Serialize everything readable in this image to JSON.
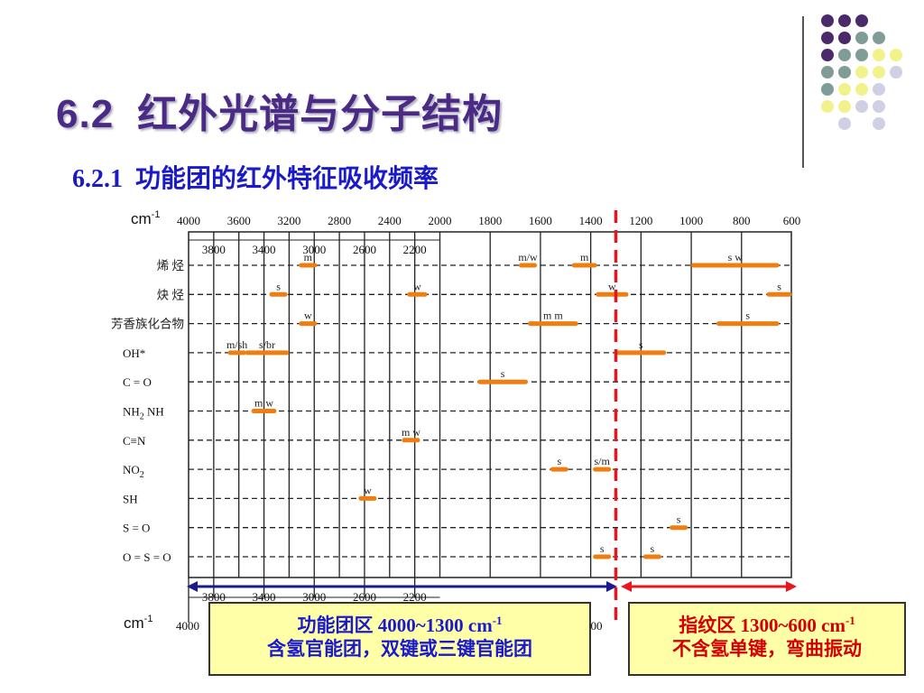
{
  "slide": {
    "title_num": "6.2",
    "title_text": "红外光谱与分子结构",
    "subtitle_num": "6.2.1",
    "subtitle_text": "功能团的红外特征吸收频率"
  },
  "colors": {
    "title": "#4b2a86",
    "subtitle": "#1a1ac8",
    "bar": "#f07d10",
    "divider": "#e8141e",
    "left_arrow": "#1a1a8c",
    "right_arrow": "#e8141e",
    "box_bg": "#ffffa8"
  },
  "dot_colors": {
    "purple": "#4a2a6a",
    "teal": "#7f9c96",
    "yellow": "#f2f28c",
    "lavender": "#d0d0e4"
  },
  "dot_grid": [
    [
      "purple",
      "purple",
      "purple",
      "",
      ""
    ],
    [
      "purple",
      "purple",
      "teal",
      "teal",
      ""
    ],
    [
      "purple",
      "teal",
      "teal",
      "yellow",
      "yellow"
    ],
    [
      "teal",
      "teal",
      "yellow",
      "yellow",
      "lavender"
    ],
    [
      "teal",
      "yellow",
      "yellow",
      "lavender",
      ""
    ],
    [
      "yellow",
      "yellow",
      "lavender",
      "lavender",
      ""
    ],
    [
      "",
      "lavender",
      "",
      "lavender",
      ""
    ]
  ],
  "chart_data": {
    "type": "bar",
    "unit_label": "cm",
    "unit_sup": "-1",
    "top_ticks_major": [
      "4000",
      "3600",
      "3200",
      "2800",
      "2400",
      "2000",
      "1800",
      "1600",
      "1400",
      "1200",
      "1000",
      "800",
      "600"
    ],
    "top_ticks_minor": [
      "3800",
      "3400",
      "3000",
      "2600",
      "2200"
    ],
    "bottom_ticks_minor": [
      "3800",
      "3400",
      "3000",
      "2600",
      "2200"
    ],
    "bottom_ticks_major_visible": [
      "4000",
      "00"
    ],
    "divider_at": 1300,
    "categories": [
      "烯 烃",
      "炔 烃",
      "芳香族化合物",
      "OH*",
      "C = O",
      "NH",
      "C≡N",
      "NO",
      "SH",
      "S = O",
      "O = S = O"
    ],
    "nh_sub": "2",
    "nh_suffix": "NH",
    "no_sub": "2",
    "bands": [
      {
        "row": 0,
        "from": 3100,
        "to": 3000,
        "label": "m"
      },
      {
        "row": 0,
        "from": 1680,
        "to": 1620,
        "label": "m/w"
      },
      {
        "row": 0,
        "from": 1475,
        "to": 1375,
        "label": "m"
      },
      {
        "row": 0,
        "from": 1000,
        "to": 650,
        "label": "s w"
      },
      {
        "row": 1,
        "from": 3320,
        "to": 3250,
        "label": "s"
      },
      {
        "row": 1,
        "from": 2260,
        "to": 2100,
        "label": "w"
      },
      {
        "row": 1,
        "from": 1380,
        "to": 1250,
        "label": "w"
      },
      {
        "row": 1,
        "from": 700,
        "to": 600,
        "label": "s"
      },
      {
        "row": 2,
        "from": 3100,
        "to": 3000,
        "label": "w"
      },
      {
        "row": 2,
        "from": 1650,
        "to": 1450,
        "label": "m  m"
      },
      {
        "row": 2,
        "from": 900,
        "to": 650,
        "label": "s"
      },
      {
        "row": 3,
        "from": 3650,
        "to": 3580,
        "label": "m/sh"
      },
      {
        "row": 3,
        "from": 3550,
        "to": 3200,
        "label": "s/br"
      },
      {
        "row": 3,
        "from": 1300,
        "to": 1100,
        "label": "s"
      },
      {
        "row": 4,
        "from": 1850,
        "to": 1650,
        "label": "s"
      },
      {
        "row": 5,
        "from": 3500,
        "to": 3300,
        "label": "m w"
      },
      {
        "row": 6,
        "from": 2240,
        "to": 2220,
        "label": "m w"
      },
      {
        "row": 7,
        "from": 1550,
        "to": 1500,
        "label": "s"
      },
      {
        "row": 7,
        "from": 1380,
        "to": 1330,
        "label": "s/m"
      },
      {
        "row": 8,
        "from": 2600,
        "to": 2550,
        "label": "w"
      },
      {
        "row": 9,
        "from": 1070,
        "to": 1030,
        "label": "s"
      },
      {
        "row": 10,
        "from": 1380,
        "to": 1330,
        "label": "s"
      },
      {
        "row": 10,
        "from": 1180,
        "to": 1130,
        "label": "s"
      }
    ]
  },
  "boxes": {
    "left_line1_cn": "功能团区",
    "left_line1_val": "4000~1300 cm",
    "left_line1_sup": "-1",
    "left_line2": "含氢官能团，双键或三键官能团",
    "right_line1_cn": "指纹区",
    "right_line1_val": "1300~600 cm",
    "right_line1_sup": "-1",
    "right_line2": "不含氢单键，弯曲振动"
  }
}
